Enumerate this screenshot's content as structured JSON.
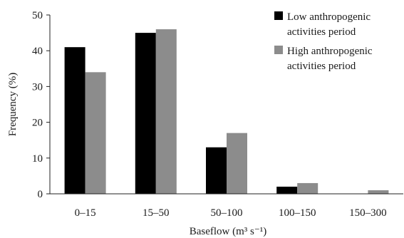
{
  "chart_data": {
    "type": "bar",
    "xlabel": "Baseflow (m³ s⁻¹)",
    "ylabel": "Frequency (%)",
    "categories": [
      "0–15",
      "15–50",
      "50–100",
      "100–150",
      "150–300"
    ],
    "ylim": [
      0,
      50
    ],
    "yticks": [
      0,
      10,
      20,
      30,
      40,
      50
    ],
    "grid": false,
    "legend_position": "top-right",
    "series": [
      {
        "name": "Low anthropogenic activities period",
        "color": "#000000",
        "values": [
          41,
          45,
          13,
          2,
          0
        ]
      },
      {
        "name": "High anthropogenic activities period",
        "color": "#8c8c8c",
        "values": [
          34,
          46,
          17,
          3,
          1
        ]
      }
    ]
  }
}
